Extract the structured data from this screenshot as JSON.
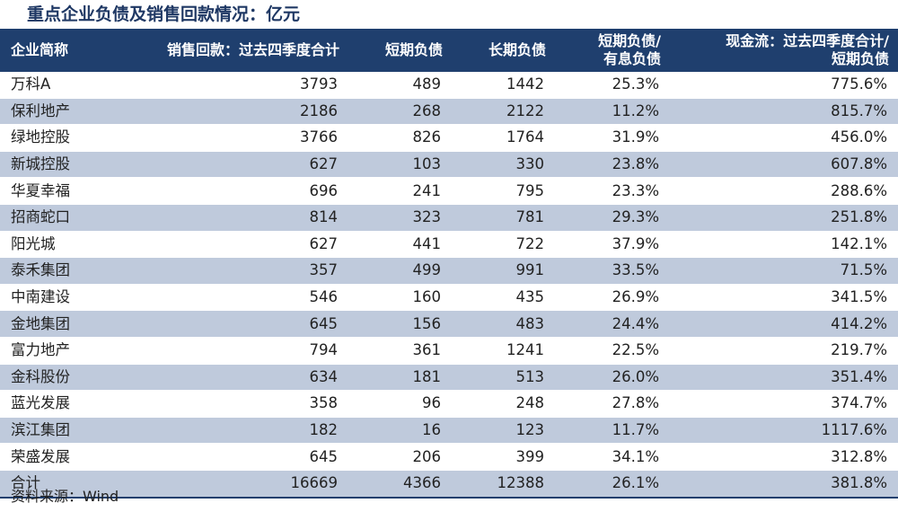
{
  "chart_data": {
    "type": "table",
    "title": "重点企业负债及销售回款情况：亿元",
    "columns": [
      "企业简称",
      "销售回款：过去四季度合计",
      "短期负债",
      "长期负债",
      "短期负债/有息负债",
      "现金流：过去四季度合计/短期负债"
    ],
    "rows": [
      [
        "万科A",
        "3793",
        "489",
        "1442",
        "25.3%",
        "775.6%"
      ],
      [
        "保利地产",
        "2186",
        "268",
        "2122",
        "11.2%",
        "815.7%"
      ],
      [
        "绿地控股",
        "3766",
        "826",
        "1764",
        "31.9%",
        "456.0%"
      ],
      [
        "新城控股",
        "627",
        "103",
        "330",
        "23.8%",
        "607.8%"
      ],
      [
        "华夏幸福",
        "696",
        "241",
        "795",
        "23.3%",
        "288.6%"
      ],
      [
        "招商蛇口",
        "814",
        "323",
        "781",
        "29.3%",
        "251.8%"
      ],
      [
        "阳光城",
        "627",
        "441",
        "722",
        "37.9%",
        "142.1%"
      ],
      [
        "泰禾集团",
        "357",
        "499",
        "991",
        "33.5%",
        "71.5%"
      ],
      [
        "中南建设",
        "546",
        "160",
        "435",
        "26.9%",
        "341.5%"
      ],
      [
        "金地集团",
        "645",
        "156",
        "483",
        "24.4%",
        "414.2%"
      ],
      [
        "富力地产",
        "794",
        "361",
        "1241",
        "22.5%",
        "219.7%"
      ],
      [
        "金科股份",
        "634",
        "181",
        "513",
        "26.0%",
        "351.4%"
      ],
      [
        "蓝光发展",
        "358",
        "96",
        "248",
        "27.8%",
        "374.7%"
      ],
      [
        "滨江集团",
        "182",
        "16",
        "123",
        "11.7%",
        "1117.6%"
      ],
      [
        "荣盛发展",
        "645",
        "206",
        "399",
        "34.1%",
        "312.8%"
      ],
      [
        "合计",
        "16669",
        "4366",
        "12388",
        "26.1%",
        "381.8%"
      ]
    ]
  },
  "source": "资料来源：Wind",
  "colors": {
    "header_bg": "#1f3f6e",
    "stripe_bg": "#bfcadc",
    "title": "#1f3864"
  }
}
